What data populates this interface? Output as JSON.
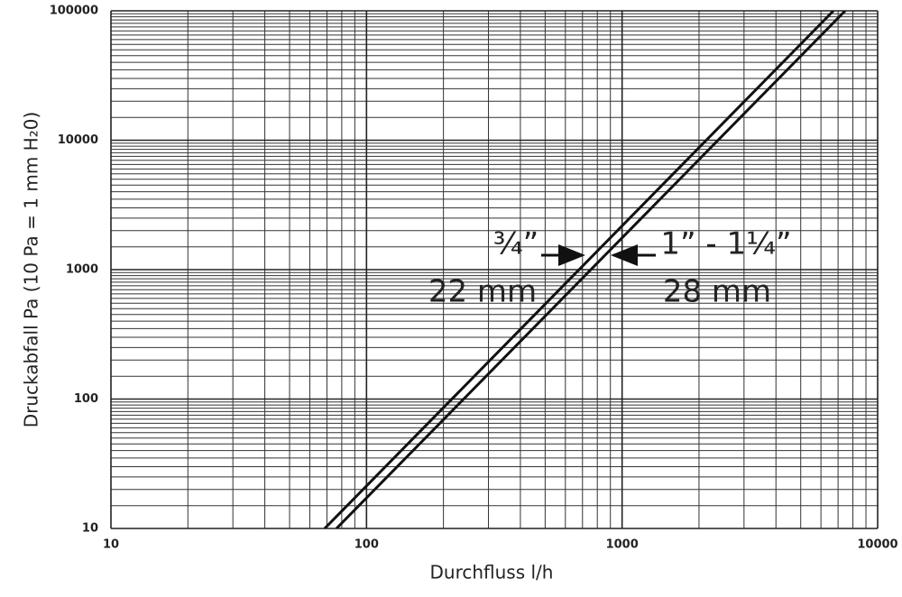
{
  "chart_data": {
    "type": "line",
    "xlabel": "Durchfluss l/h",
    "ylabel": "Druckabfall Pa (10 Pa = 1 mm H₂0)",
    "x_log": true,
    "y_log": true,
    "grid": true,
    "minor_grid": true,
    "xlim": [
      10,
      10000
    ],
    "ylim": [
      10,
      100000
    ],
    "xticks": [
      10,
      100,
      1000,
      10000
    ],
    "yticks": [
      10,
      100,
      1000,
      10000,
      100000
    ],
    "series": [
      {
        "color": "#111111",
        "x": [
          68.6,
          6714
        ],
        "values": [
          10,
          100000
        ]
      },
      {
        "color": "#111111",
        "x": [
          76.3,
          7464
        ],
        "values": [
          10,
          100000
        ]
      }
    ],
    "annotations": [
      "¾”",
      "1” - 1¼”",
      "22 mm",
      "28 mm"
    ]
  }
}
